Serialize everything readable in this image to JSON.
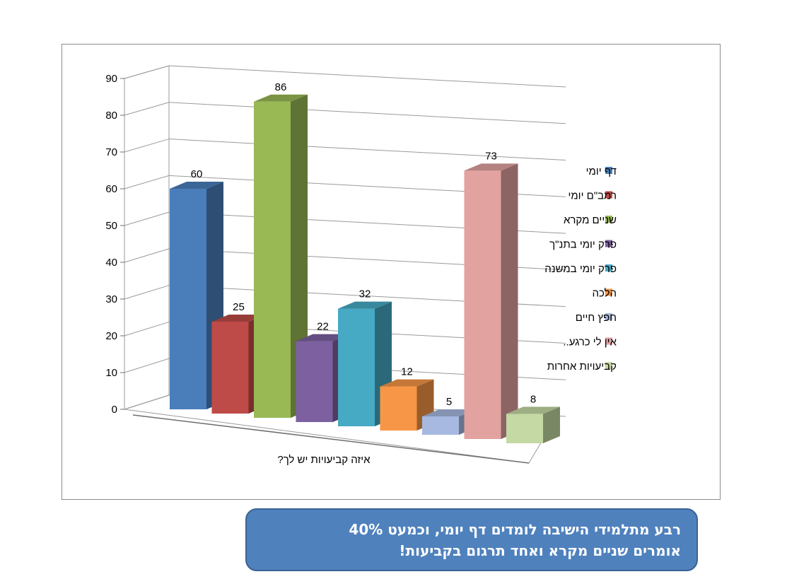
{
  "chart_data": {
    "type": "bar",
    "title": "",
    "xlabel": "איזה קביעויות יש לך?",
    "ylabel": "",
    "ylim": [
      0,
      90
    ],
    "yticks": [
      0,
      10,
      20,
      30,
      40,
      50,
      60,
      70,
      80,
      90
    ],
    "grid": true,
    "legend_position": "right",
    "series": [
      {
        "name": "דף יומי",
        "value": 60,
        "color": "#4a7ebb"
      },
      {
        "name": "רמב\"ם יומי",
        "value": 25,
        "color": "#be4b48"
      },
      {
        "name": "שניים מקרא",
        "value": 86,
        "color": "#98b954"
      },
      {
        "name": "פרק יומי בתנ\"ך",
        "value": 22,
        "color": "#7d60a0"
      },
      {
        "name": "פרק יומי במשנה",
        "value": 32,
        "color": "#46aac5"
      },
      {
        "name": "הלכה",
        "value": 12,
        "color": "#f79646"
      },
      {
        "name": "חפץ חיים",
        "value": 5,
        "color": "#a7b9e1"
      },
      {
        "name": "אין לי כרגע..",
        "value": 73,
        "color": "#e2a2a0"
      },
      {
        "name": "קביעויות אחרות",
        "value": 8,
        "color": "#c4d9a3"
      }
    ]
  },
  "callout": {
    "line1": "רבע מתלמידי הישיבה לומדים דף יומי, וכמעט 40%",
    "line2": "אומרים שניים מקרא ואחד תרגום בקביעות!"
  }
}
